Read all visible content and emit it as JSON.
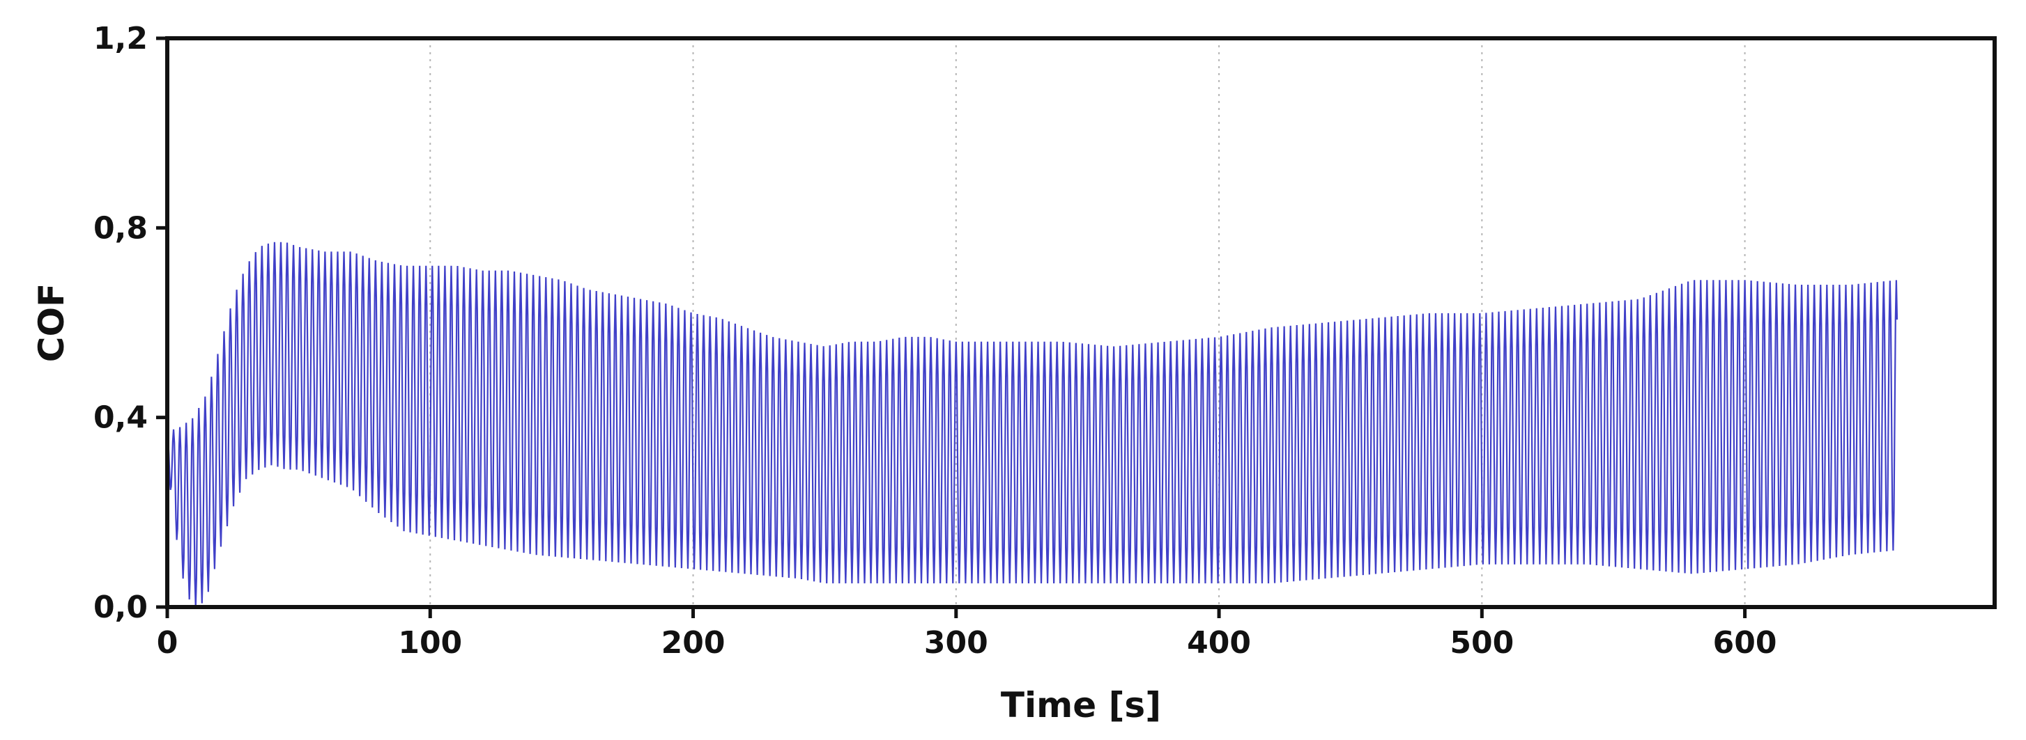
{
  "chart_data": {
    "type": "line",
    "title": "",
    "xlabel": "Time [s]",
    "ylabel": "COF",
    "xlim": [
      0,
      695
    ],
    "ylim": [
      0.0,
      1.2
    ],
    "x_ticks": [
      0,
      100,
      200,
      300,
      400,
      500,
      600
    ],
    "x_tick_labels": [
      "0",
      "100",
      "200",
      "300",
      "400",
      "500",
      "600"
    ],
    "y_ticks": [
      0.0,
      0.4,
      0.8,
      1.2
    ],
    "y_tick_labels": [
      "0,0",
      "0,4",
      "0,8",
      "1,2"
    ],
    "grid": {
      "x": true,
      "y": false,
      "style": "dotted"
    },
    "legend": "none",
    "series": [
      {
        "color": "#4040c8",
        "oscillation_period_s": 2.4,
        "x_end": 658,
        "upper_envelope": {
          "x": [
            0,
            5,
            10,
            15,
            20,
            25,
            30,
            35,
            40,
            45,
            50,
            60,
            70,
            80,
            90,
            100,
            110,
            120,
            130,
            140,
            150,
            160,
            170,
            180,
            190,
            200,
            210,
            220,
            230,
            240,
            250,
            260,
            270,
            280,
            290,
            300,
            320,
            340,
            360,
            380,
            400,
            420,
            440,
            460,
            480,
            500,
            520,
            540,
            560,
            580,
            600,
            620,
            640,
            658
          ],
          "y": [
            0.37,
            0.38,
            0.4,
            0.45,
            0.55,
            0.65,
            0.72,
            0.76,
            0.77,
            0.77,
            0.76,
            0.75,
            0.75,
            0.73,
            0.72,
            0.72,
            0.72,
            0.71,
            0.71,
            0.7,
            0.69,
            0.67,
            0.66,
            0.65,
            0.64,
            0.62,
            0.61,
            0.59,
            0.57,
            0.56,
            0.55,
            0.56,
            0.56,
            0.57,
            0.57,
            0.56,
            0.56,
            0.56,
            0.55,
            0.56,
            0.57,
            0.59,
            0.6,
            0.61,
            0.62,
            0.62,
            0.63,
            0.64,
            0.65,
            0.69,
            0.69,
            0.68,
            0.68,
            0.69
          ]
        },
        "lower_envelope": {
          "x": [
            0,
            5,
            8,
            10,
            12,
            15,
            20,
            25,
            30,
            35,
            40,
            45,
            50,
            60,
            70,
            80,
            90,
            100,
            120,
            140,
            160,
            180,
            200,
            220,
            240,
            250,
            260,
            280,
            300,
            320,
            340,
            360,
            380,
            400,
            420,
            440,
            460,
            480,
            500,
            520,
            540,
            560,
            580,
            600,
            620,
            640,
            658
          ],
          "y": [
            0.3,
            0.08,
            0.02,
            0.0,
            0.0,
            0.02,
            0.12,
            0.21,
            0.27,
            0.29,
            0.3,
            0.29,
            0.29,
            0.27,
            0.25,
            0.2,
            0.16,
            0.15,
            0.13,
            0.11,
            0.1,
            0.09,
            0.08,
            0.07,
            0.06,
            0.05,
            0.05,
            0.05,
            0.05,
            0.05,
            0.05,
            0.05,
            0.05,
            0.05,
            0.05,
            0.06,
            0.07,
            0.08,
            0.09,
            0.09,
            0.09,
            0.08,
            0.07,
            0.08,
            0.09,
            0.11,
            0.12
          ]
        }
      }
    ]
  }
}
